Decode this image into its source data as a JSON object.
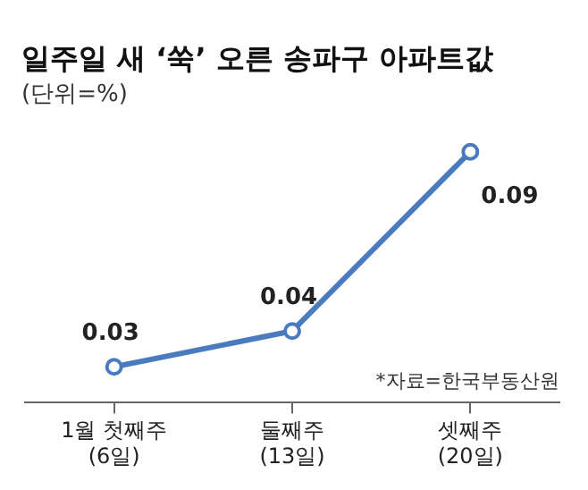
{
  "chart_data": {
    "type": "line",
    "title": "일주일 새 ‘쑥’ 오른 송파구 아파트값",
    "subtitle": "(단위=%)",
    "categories": [
      "1월 첫째주\n(6일)",
      "둘째주\n(13일)",
      "셋째주\n(20일)"
    ],
    "series": [
      {
        "color": "#4a7bbf",
        "values": [
          0.03,
          0.04,
          0.09
        ]
      }
    ],
    "data_labels": true,
    "marker": "circle",
    "grid": false,
    "legend": false,
    "annotations": [
      "*자료=한국부동산원"
    ]
  }
}
